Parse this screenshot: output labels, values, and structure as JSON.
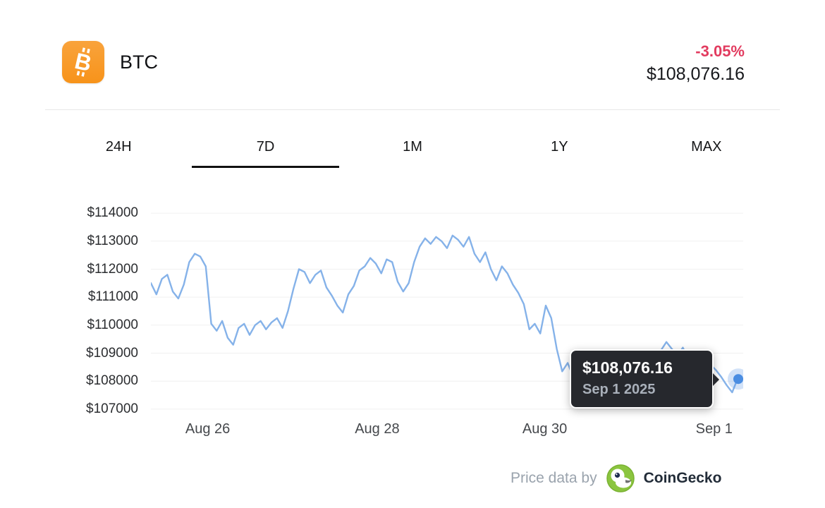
{
  "header": {
    "coin": "BTC",
    "change": "-3.05%",
    "price": "$108,076.16"
  },
  "tabs": {
    "items": [
      "24H",
      "7D",
      "1M",
      "1Y",
      "MAX"
    ],
    "active": "7D"
  },
  "chart_data": {
    "type": "line",
    "xlabel": "",
    "ylabel": "",
    "grid": true,
    "ylim": [
      106620,
      114430
    ],
    "y_tick_prefix": "$",
    "y_ticks": [
      114000,
      113000,
      112000,
      111000,
      110000,
      109000,
      108000,
      107000
    ],
    "x_ticks": [
      {
        "label": "Aug 26",
        "pos": 0.096
      },
      {
        "label": "Aug 28",
        "pos": 0.382
      },
      {
        "label": "Aug 30",
        "pos": 0.665
      },
      {
        "label": "Sep 1",
        "pos": 0.951
      }
    ],
    "line_color": "#85b2e9",
    "dot_color": "#4a8de2",
    "series": [
      {
        "name": "BTC/USD",
        "values": [
          111500,
          111100,
          111650,
          111800,
          111200,
          110950,
          111450,
          112250,
          112550,
          112450,
          112100,
          110050,
          109800,
          110150,
          109550,
          109300,
          109900,
          110050,
          109650,
          110000,
          110150,
          109850,
          110100,
          110250,
          109900,
          110500,
          111300,
          112000,
          111900,
          111500,
          111800,
          111950,
          111350,
          111050,
          110700,
          110450,
          111100,
          111400,
          111950,
          112100,
          112400,
          112200,
          111850,
          112350,
          112250,
          111550,
          111200,
          111500,
          112250,
          112800,
          113100,
          112900,
          113150,
          113000,
          112750,
          113200,
          113050,
          112800,
          113150,
          112550,
          112250,
          112600,
          112000,
          111600,
          112100,
          111850,
          111450,
          111150,
          110750,
          109850,
          110050,
          109700,
          110700,
          110250,
          109150,
          108350,
          108650,
          108150,
          108550,
          108300,
          107850,
          108250,
          108600,
          108050,
          108300,
          107800,
          108200,
          108450,
          108250,
          108400,
          108500,
          108700,
          108950,
          109100,
          109400,
          109150,
          108900,
          109200,
          108800,
          108650,
          108750,
          108350,
          108600,
          108400,
          108150,
          107850,
          107600,
          108100,
          108076
        ]
      }
    ],
    "last_point": {
      "value": 108076.16,
      "label": "$108,076.16",
      "date": "Sep 1 2025"
    }
  },
  "tooltip": {
    "price": "$108,076.16",
    "date": "Sep 1 2025"
  },
  "footer": {
    "attribution": "Price data by",
    "brand": "CoinGecko"
  },
  "colors": {
    "down": "#e23b5f",
    "bitcoin_orange": "#f7931a",
    "line_blue": "#85b2e9",
    "dot_blue": "#4a8de2",
    "gecko_green": "#8bc53f"
  }
}
